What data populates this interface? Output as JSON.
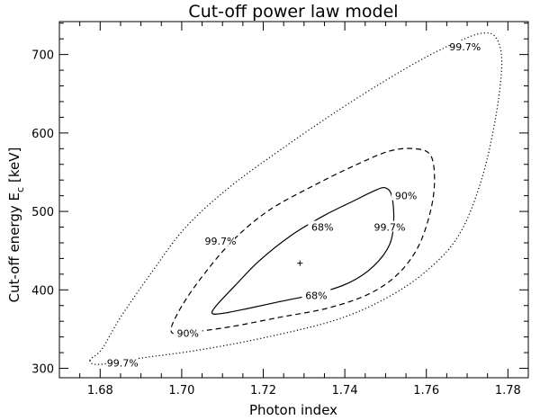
{
  "chart_data": {
    "type": "contour",
    "title": "Cut-off power law model",
    "xlabel": "Photon index",
    "ylabel_main": "Cut-off energy E",
    "ylabel_sub": "c",
    "ylabel_unit": "[keV]",
    "xlim": [
      1.67,
      1.785
    ],
    "ylim": [
      288,
      742
    ],
    "x_ticks": [
      1.68,
      1.7,
      1.72,
      1.74,
      1.76,
      1.78
    ],
    "x_tick_labels": [
      "1.68",
      "1.70",
      "1.72",
      "1.74",
      "1.76",
      "1.78"
    ],
    "y_ticks": [
      300,
      400,
      500,
      600,
      700
    ],
    "y_tick_labels": [
      "300",
      "400",
      "500",
      "600",
      "700"
    ],
    "best_fit": {
      "x": 1.729,
      "y": 434,
      "marker": "+"
    },
    "contours": [
      {
        "level": "68%",
        "style": "solid",
        "points": [
          [
            1.7075,
            370
          ],
          [
            1.71,
            370
          ],
          [
            1.716,
            376
          ],
          [
            1.724,
            385
          ],
          [
            1.733,
            395
          ],
          [
            1.741,
            409
          ],
          [
            1.747,
            430
          ],
          [
            1.751,
            458
          ],
          [
            1.752,
            490
          ],
          [
            1.7515,
            520
          ],
          [
            1.75,
            530
          ],
          [
            1.7475,
            527
          ],
          [
            1.742,
            513
          ],
          [
            1.735,
            495
          ],
          [
            1.727,
            470
          ],
          [
            1.719,
            437
          ],
          [
            1.713,
            405
          ],
          [
            1.7085,
            380
          ],
          [
            1.7075,
            370
          ]
        ],
        "labels": [
          {
            "text": "68%",
            "x": 1.733,
            "y": 393
          },
          {
            "text": "68%",
            "x": 1.7345,
            "y": 480
          }
        ]
      },
      {
        "level": "90%",
        "style": "dashed",
        "points": [
          [
            1.6975,
            346
          ],
          [
            1.702,
            346
          ],
          [
            1.712,
            353
          ],
          [
            1.724,
            365
          ],
          [
            1.736,
            377
          ],
          [
            1.746,
            395
          ],
          [
            1.753,
            420
          ],
          [
            1.758,
            455
          ],
          [
            1.761,
            500
          ],
          [
            1.762,
            540
          ],
          [
            1.761,
            572
          ],
          [
            1.757,
            580
          ],
          [
            1.751,
            577
          ],
          [
            1.743,
            560
          ],
          [
            1.732,
            532
          ],
          [
            1.721,
            500
          ],
          [
            1.712,
            460
          ],
          [
            1.704,
            410
          ],
          [
            1.699,
            370
          ],
          [
            1.6975,
            346
          ]
        ],
        "labels": [
          {
            "text": "90%",
            "x": 1.7015,
            "y": 345
          },
          {
            "text": "90%",
            "x": 1.755,
            "y": 520
          }
        ]
      },
      {
        "level": "99.7%",
        "style": "dotted",
        "points": [
          [
            1.6775,
            310
          ],
          [
            1.68,
            305
          ],
          [
            1.69,
            313
          ],
          [
            1.705,
            324
          ],
          [
            1.722,
            341
          ],
          [
            1.738,
            362
          ],
          [
            1.75,
            389
          ],
          [
            1.76,
            424
          ],
          [
            1.768,
            470
          ],
          [
            1.7735,
            540
          ],
          [
            1.777,
            620
          ],
          [
            1.7785,
            690
          ],
          [
            1.777,
            722
          ],
          [
            1.7735,
            727
          ],
          [
            1.768,
            717
          ],
          [
            1.76,
            697
          ],
          [
            1.75,
            667
          ],
          [
            1.739,
            631
          ],
          [
            1.726,
            585
          ],
          [
            1.712,
            532
          ],
          [
            1.701,
            480
          ],
          [
            1.693,
            425
          ],
          [
            1.685,
            365
          ],
          [
            1.6805,
            325
          ],
          [
            1.6775,
            310
          ]
        ],
        "labels": [
          {
            "text": "99.7%",
            "x": 1.6855,
            "y": 307
          },
          {
            "text": "99.7%",
            "x": 1.7095,
            "y": 462
          },
          {
            "text": "99.7%",
            "x": 1.751,
            "y": 480
          },
          {
            "text": "99.7%",
            "x": 1.7695,
            "y": 710
          }
        ]
      }
    ]
  }
}
